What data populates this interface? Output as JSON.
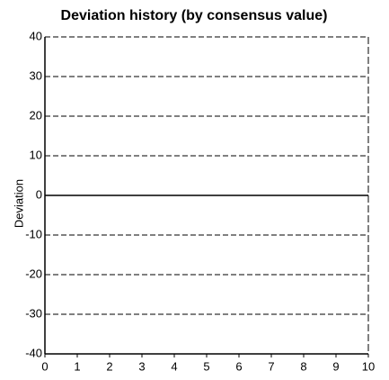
{
  "chart_data": {
    "type": "line",
    "title": "Deviation history (by consensus value)",
    "y_label": "Deviation",
    "xlim": [
      0,
      10
    ],
    "xticks": [
      0,
      1,
      2,
      3,
      4,
      5,
      6,
      7,
      8,
      9,
      10
    ],
    "ylim": [
      -40,
      40
    ],
    "yticks": [
      -40,
      -30,
      -20,
      -10,
      0,
      10,
      20,
      30,
      40
    ],
    "grid": true,
    "series": []
  }
}
